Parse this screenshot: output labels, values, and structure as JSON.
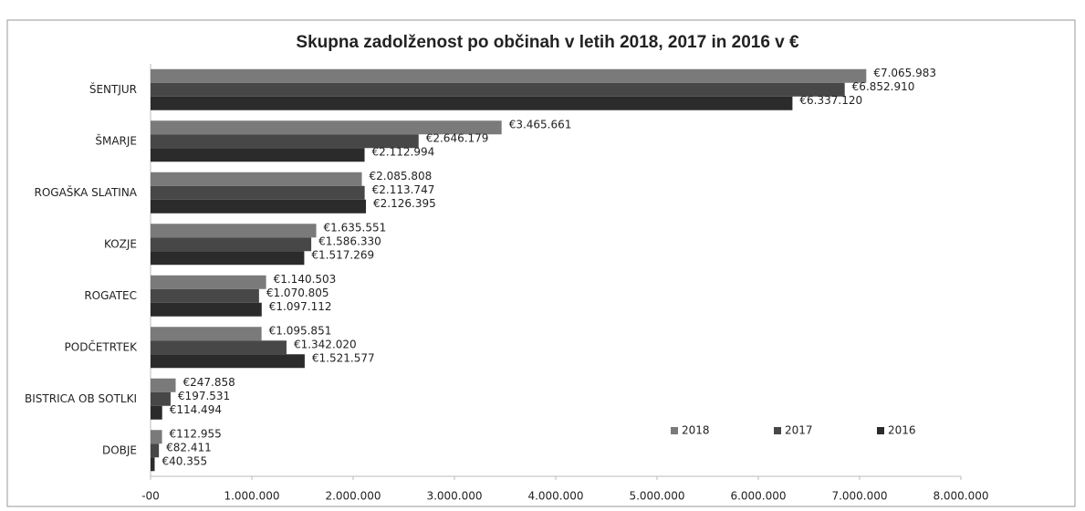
{
  "chart_data": {
    "type": "hbar",
    "title": "Skupna zadolženost po občinah v letih 2018, 2017 in 2016 v €",
    "categories": [
      "ŠENTJUR",
      "ŠMARJE",
      "ROGAŠKA SLATINA",
      "KOZJE",
      "ROGATEC",
      "PODČETRTEK",
      "BISTRICA OB SOTLKI",
      "DOBJE"
    ],
    "series": [
      {
        "name": "2018",
        "color": "#7a7a7a",
        "values": [
          7065983,
          3465661,
          2085808,
          1635551,
          1140503,
          1095851,
          247858,
          112955
        ],
        "value_labels": [
          "€7.065.983",
          "€3.465.661",
          "€2.085.808",
          "€1.635.551",
          "€1.140.503",
          "€1.095.851",
          "€247.858",
          "€112.955"
        ]
      },
      {
        "name": "2017",
        "color": "#474747",
        "values": [
          6852910,
          2646179,
          2113747,
          1586330,
          1070805,
          1342020,
          197531,
          82411
        ],
        "value_labels": [
          "€6.852.910",
          "€2.646.179",
          "€2.113.747",
          "€1.586.330",
          "€1.070.805",
          "€1.342.020",
          "€197.531",
          "€82.411"
        ]
      },
      {
        "name": "2016",
        "color": "#2b2b2b",
        "values": [
          6337120,
          2112994,
          2126395,
          1517269,
          1097112,
          1521577,
          114494,
          40355
        ],
        "value_labels": [
          "€6.337.120",
          "€2.112.994",
          "€2.126.395",
          "€1.517.269",
          "€1.097.112",
          "€1.521.577",
          "€114.494",
          "€40.355"
        ]
      }
    ],
    "xlim": [
      0,
      8000000
    ],
    "xticks": [
      {
        "value": 0,
        "label": "-00"
      },
      {
        "value": 1000000,
        "label": "1.000.000"
      },
      {
        "value": 2000000,
        "label": "2.000.000"
      },
      {
        "value": 3000000,
        "label": "3.000.000"
      },
      {
        "value": 4000000,
        "label": "4.000.000"
      },
      {
        "value": 5000000,
        "label": "5.000.000"
      },
      {
        "value": 6000000,
        "label": "6.000.000"
      },
      {
        "value": 7000000,
        "label": "7.000.000"
      },
      {
        "value": 8000000,
        "label": "8.000.000"
      }
    ],
    "legend": "lower right"
  }
}
